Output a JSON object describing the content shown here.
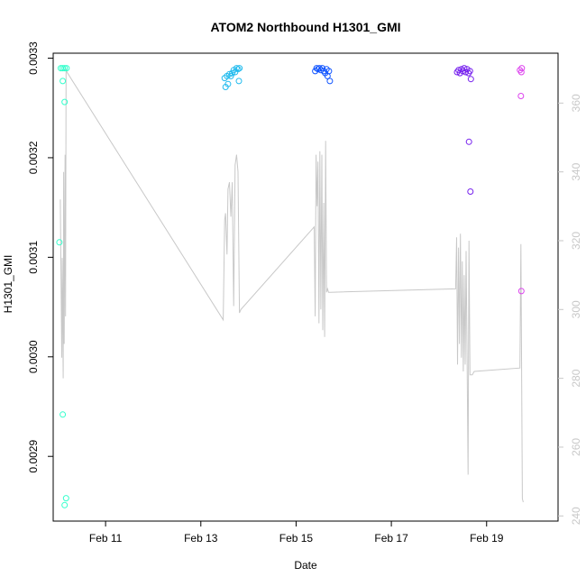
{
  "chart_data": {
    "type": "scatter",
    "title": "ATOM2 Northbound H1301_GMI",
    "xlabel": "Date",
    "ylabel": "H1301_GMI",
    "x_ticks": [
      "Feb 11",
      "Feb 13",
      "Feb 15",
      "Feb 17",
      "Feb 19"
    ],
    "x_tick_days": [
      11,
      13,
      15,
      17,
      19
    ],
    "xlim": [
      9.9,
      20.5
    ],
    "y_left": {
      "ticks": [
        "0.0029",
        "0.0030",
        "0.0031",
        "0.0032",
        "0.0033"
      ],
      "tick_values": [
        0.0029,
        0.003,
        0.0031,
        0.0032,
        0.0033
      ],
      "ylim": [
        0.002835,
        0.003305
      ]
    },
    "y_right": {
      "ticks": [
        "240",
        "260",
        "280",
        "300",
        "320",
        "340",
        "360"
      ],
      "tick_values": [
        240,
        260,
        280,
        300,
        320,
        340,
        360
      ],
      "ylim": [
        238.5,
        374.5
      ]
    },
    "points": [
      {
        "x": 10.06,
        "y": 0.00329,
        "color": "#33ffcc"
      },
      {
        "x": 10.1,
        "y": 0.00329,
        "color": "#33ffcc"
      },
      {
        "x": 10.14,
        "y": 0.00329,
        "color": "#33ffcc"
      },
      {
        "x": 10.18,
        "y": 0.00329,
        "color": "#33ffcc"
      },
      {
        "x": 10.1,
        "y": 0.003277,
        "color": "#33ffcc"
      },
      {
        "x": 10.14,
        "y": 0.003256,
        "color": "#33ffcc"
      },
      {
        "x": 10.03,
        "y": 0.003115,
        "color": "#33ffcc"
      },
      {
        "x": 10.1,
        "y": 0.002942,
        "color": "#33ffcc"
      },
      {
        "x": 10.17,
        "y": 0.002858,
        "color": "#33ffcc"
      },
      {
        "x": 10.14,
        "y": 0.002851,
        "color": "#33ffcc"
      },
      {
        "x": 13.5,
        "y": 0.00328,
        "color": "#22bbee"
      },
      {
        "x": 13.52,
        "y": 0.003271,
        "color": "#22bbee"
      },
      {
        "x": 13.55,
        "y": 0.003282,
        "color": "#22bbee"
      },
      {
        "x": 13.57,
        "y": 0.003274,
        "color": "#22bbee"
      },
      {
        "x": 13.6,
        "y": 0.003284,
        "color": "#22bbee"
      },
      {
        "x": 13.63,
        "y": 0.003282,
        "color": "#22bbee"
      },
      {
        "x": 13.66,
        "y": 0.003285,
        "color": "#22bbee"
      },
      {
        "x": 13.69,
        "y": 0.003288,
        "color": "#22bbee"
      },
      {
        "x": 13.72,
        "y": 0.003286,
        "color": "#22bbee"
      },
      {
        "x": 13.75,
        "y": 0.00329,
        "color": "#22bbee"
      },
      {
        "x": 13.78,
        "y": 0.003289,
        "color": "#22bbee"
      },
      {
        "x": 13.81,
        "y": 0.00329,
        "color": "#22bbee"
      },
      {
        "x": 13.8,
        "y": 0.003277,
        "color": "#22bbee"
      },
      {
        "x": 15.4,
        "y": 0.003287,
        "color": "#1155ff"
      },
      {
        "x": 15.43,
        "y": 0.00329,
        "color": "#1155ff"
      },
      {
        "x": 15.46,
        "y": 0.003289,
        "color": "#1155ff"
      },
      {
        "x": 15.49,
        "y": 0.00329,
        "color": "#1155ff"
      },
      {
        "x": 15.52,
        "y": 0.003288,
        "color": "#1155ff"
      },
      {
        "x": 15.55,
        "y": 0.00329,
        "color": "#1155ff"
      },
      {
        "x": 15.58,
        "y": 0.003287,
        "color": "#1155ff"
      },
      {
        "x": 15.61,
        "y": 0.003285,
        "color": "#1155ff"
      },
      {
        "x": 15.64,
        "y": 0.003289,
        "color": "#1155ff"
      },
      {
        "x": 15.66,
        "y": 0.003282,
        "color": "#1155ff"
      },
      {
        "x": 15.69,
        "y": 0.003287,
        "color": "#1155ff"
      },
      {
        "x": 15.71,
        "y": 0.003277,
        "color": "#1155ff"
      },
      {
        "x": 18.38,
        "y": 0.003286,
        "color": "#7722ee"
      },
      {
        "x": 18.41,
        "y": 0.003288,
        "color": "#7722ee"
      },
      {
        "x": 18.44,
        "y": 0.003285,
        "color": "#7722ee"
      },
      {
        "x": 18.47,
        "y": 0.003289,
        "color": "#7722ee"
      },
      {
        "x": 18.5,
        "y": 0.003287,
        "color": "#7722ee"
      },
      {
        "x": 18.53,
        "y": 0.00329,
        "color": "#7722ee"
      },
      {
        "x": 18.56,
        "y": 0.003286,
        "color": "#7722ee"
      },
      {
        "x": 18.59,
        "y": 0.003289,
        "color": "#7722ee"
      },
      {
        "x": 18.62,
        "y": 0.003285,
        "color": "#7722ee"
      },
      {
        "x": 18.65,
        "y": 0.003287,
        "color": "#7722ee"
      },
      {
        "x": 18.67,
        "y": 0.003279,
        "color": "#7722ee"
      },
      {
        "x": 18.63,
        "y": 0.003216,
        "color": "#7722ee"
      },
      {
        "x": 18.66,
        "y": 0.003166,
        "color": "#7722ee"
      },
      {
        "x": 19.7,
        "y": 0.003288,
        "color": "#dd44ee"
      },
      {
        "x": 19.74,
        "y": 0.00329,
        "color": "#dd44ee"
      },
      {
        "x": 19.73,
        "y": 0.003286,
        "color": "#dd44ee"
      },
      {
        "x": 19.72,
        "y": 0.003262,
        "color": "#dd44ee"
      },
      {
        "x": 19.73,
        "y": 0.003066,
        "color": "#dd44ee"
      }
    ],
    "line_series": {
      "axis": "right",
      "color": "#c8c8c8",
      "x": [
        10.05,
        10.08,
        10.09,
        10.11,
        10.12,
        10.13,
        10.15,
        10.16,
        10.17,
        10.19,
        13.47,
        13.5,
        13.52,
        13.55,
        13.57,
        13.6,
        13.63,
        13.66,
        13.69,
        13.72,
        13.75,
        13.78,
        13.81,
        13.84,
        15.38,
        15.4,
        15.42,
        15.44,
        15.46,
        15.48,
        15.5,
        15.52,
        15.54,
        15.56,
        15.58,
        15.6,
        15.62,
        15.64,
        15.66,
        15.68,
        15.7,
        15.72,
        18.35,
        18.37,
        18.39,
        18.41,
        18.43,
        18.45,
        18.47,
        18.49,
        18.51,
        18.53,
        18.55,
        18.57,
        18.59,
        18.61,
        18.63,
        18.65,
        18.67,
        18.7,
        18.74,
        19.7,
        19.72,
        19.75,
        19.77
      ],
      "y": [
        332,
        286,
        315,
        280,
        340,
        290,
        345,
        298,
        370,
        369,
        297,
        326,
        328,
        316,
        335,
        337,
        327,
        337,
        301,
        342,
        345,
        340,
        299,
        300,
        324,
        298,
        345,
        330,
        343,
        296,
        346,
        300,
        345,
        294,
        331,
        292,
        349,
        305,
        306,
        305,
        305,
        305,
        306,
        321,
        284,
        318,
        290,
        322,
        286,
        314,
        282,
        310,
        284,
        317,
        286,
        252,
        320,
        281,
        281,
        281,
        282,
        283,
        319,
        245,
        244
      ]
    }
  }
}
